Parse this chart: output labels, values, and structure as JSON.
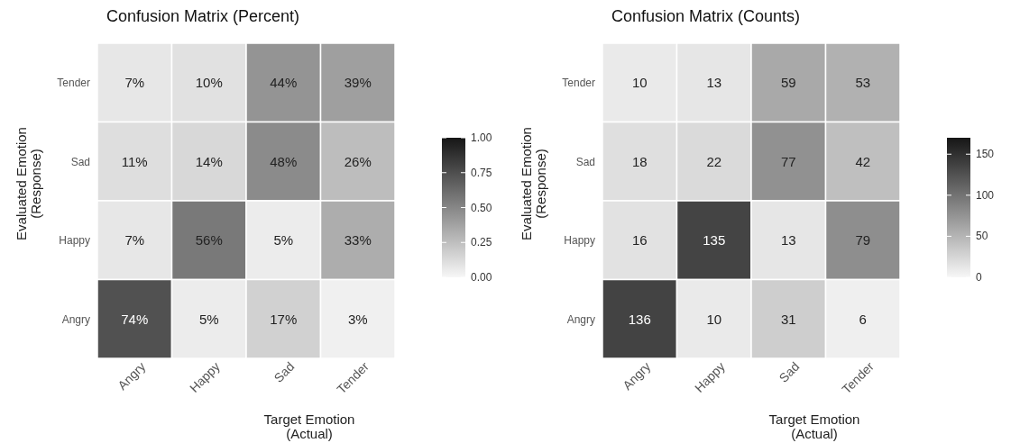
{
  "chart_data": [
    {
      "type": "heatmap",
      "title": "Confusion Matrix (Percent)",
      "xlabel": "Target Emotion\n(Actual)",
      "ylabel": "Evaluated Emotion\n(Response)",
      "categories": [
        "Angry",
        "Happy",
        "Sad",
        "Tender"
      ],
      "y_categories": [
        "Tender",
        "Sad",
        "Happy",
        "Angry"
      ],
      "cells": [
        [
          0.07,
          0.1,
          0.44,
          0.39
        ],
        [
          0.11,
          0.14,
          0.48,
          0.26
        ],
        [
          0.07,
          0.56,
          0.05,
          0.33
        ],
        [
          0.74,
          0.05,
          0.17,
          0.03
        ]
      ],
      "cell_labels": [
        [
          "7%",
          "10%",
          "44%",
          "39%"
        ],
        [
          "11%",
          "14%",
          "48%",
          "26%"
        ],
        [
          "7%",
          "56%",
          "5%",
          "33%"
        ],
        [
          "74%",
          "5%",
          "17%",
          "3%"
        ]
      ],
      "clim": [
        0,
        1
      ],
      "cticks": [
        {
          "value": 0,
          "label": "0.00"
        },
        {
          "value": 0.25,
          "label": "0.25"
        },
        {
          "value": 0.5,
          "label": "0.50"
        },
        {
          "value": 0.75,
          "label": "0.75"
        },
        {
          "value": 1,
          "label": "1.00"
        }
      ]
    },
    {
      "type": "heatmap",
      "title": "Confusion Matrix (Counts)",
      "xlabel": "Target Emotion\n(Actual)",
      "ylabel": "Evaluated Emotion\n(Response)",
      "categories": [
        "Angry",
        "Happy",
        "Sad",
        "Tender"
      ],
      "y_categories": [
        "Tender",
        "Sad",
        "Happy",
        "Angry"
      ],
      "cells": [
        [
          10,
          13,
          59,
          53
        ],
        [
          18,
          22,
          77,
          42
        ],
        [
          16,
          135,
          13,
          79
        ],
        [
          136,
          10,
          31,
          6
        ]
      ],
      "data_labels": true,
      "clim": [
        0,
        170
      ],
      "cticks": [
        0,
        50,
        100,
        150
      ]
    }
  ]
}
